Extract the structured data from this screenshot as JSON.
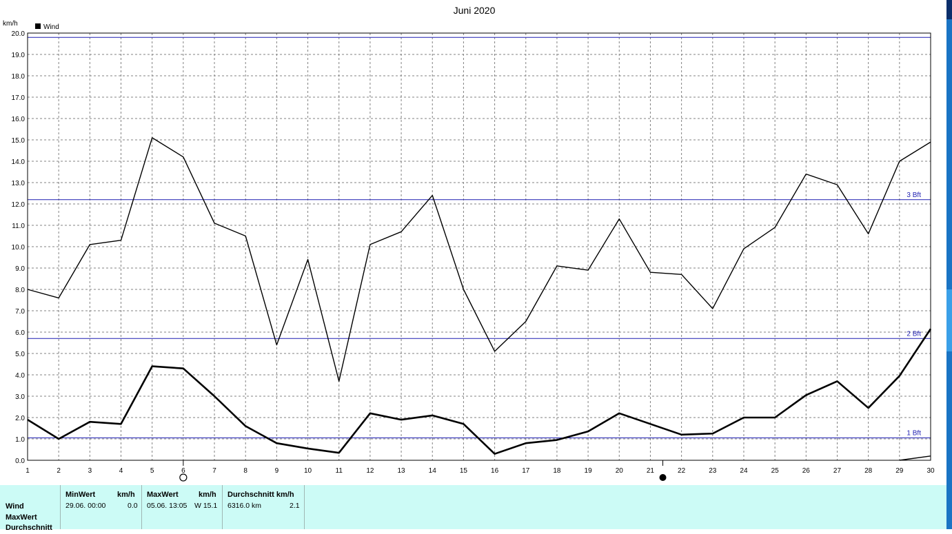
{
  "chart_data": {
    "type": "line",
    "title": "Juni 2020",
    "ylabel": "km/h",
    "xlabel": "",
    "ylim": [
      0,
      20
    ],
    "ytick_step": 1,
    "yticks": [
      "0.0",
      "1.0",
      "2.0",
      "3.0",
      "4.0",
      "5.0",
      "6.0",
      "7.0",
      "8.0",
      "9.0",
      "10.0",
      "11.0",
      "12.0",
      "13.0",
      "14.0",
      "15.0",
      "16.0",
      "17.0",
      "18.0",
      "19.0",
      "20.0"
    ],
    "x": [
      1,
      2,
      3,
      4,
      5,
      6,
      7,
      8,
      9,
      10,
      11,
      12,
      13,
      14,
      15,
      16,
      17,
      18,
      19,
      20,
      21,
      22,
      23,
      24,
      25,
      26,
      27,
      28,
      29,
      30
    ],
    "grid": true,
    "legend": {
      "position": "top-left",
      "entries": [
        "Wind"
      ]
    },
    "series": [
      {
        "name": "MaxWert",
        "style": "thin",
        "values": [
          8.0,
          7.6,
          10.1,
          10.3,
          15.1,
          14.2,
          11.1,
          10.5,
          5.4,
          9.4,
          3.7,
          10.1,
          10.7,
          12.4,
          8.0,
          5.1,
          6.5,
          9.1,
          8.9,
          11.3,
          8.8,
          8.7,
          7.1,
          9.9,
          10.9,
          13.4,
          12.9,
          10.6,
          14.0,
          14.9
        ]
      },
      {
        "name": "Durchschnitt",
        "style": "bold",
        "values": [
          1.9,
          1.0,
          1.8,
          1.7,
          4.4,
          4.3,
          3.0,
          1.6,
          0.8,
          0.55,
          0.35,
          2.2,
          1.9,
          2.1,
          1.7,
          0.3,
          0.8,
          0.95,
          1.35,
          2.2,
          1.7,
          1.2,
          1.25,
          2.0,
          2.0,
          3.05,
          3.7,
          2.45,
          3.95,
          6.15
        ]
      },
      {
        "name": "MinWert",
        "style": "thin",
        "points": [
          [
            29,
            0.0
          ],
          [
            30,
            0.2
          ]
        ]
      }
    ],
    "reference_lines": [
      {
        "label": "1 Bft",
        "value": 1.05
      },
      {
        "label": "2 Bft",
        "value": 5.7
      },
      {
        "label": "3 Bft",
        "value": 12.2
      },
      {
        "label": "",
        "value": 19.8
      }
    ],
    "moon_markers": [
      {
        "type": "full-moon",
        "x": 6
      },
      {
        "type": "new-moon",
        "x": 21.4
      }
    ],
    "colors": {
      "line": "#000000",
      "reference": "#1c1cb0",
      "grid": "#808080",
      "panel": "#ccfbf6"
    }
  },
  "stats": {
    "row_labels": [
      "Wind",
      "MaxWert",
      "Durchschnitt"
    ],
    "min": {
      "header": "MinWert",
      "unit": "km/h",
      "datetime": "29.06.  00:00",
      "value": "0.0"
    },
    "max": {
      "header": "MaxWert",
      "unit": "km/h",
      "datetime": "05.06.  13:05",
      "dir_value": "W 15.1"
    },
    "avg": {
      "header": "Durchschnitt km/h",
      "distance": "6316.0 km",
      "value": "2.1"
    }
  }
}
